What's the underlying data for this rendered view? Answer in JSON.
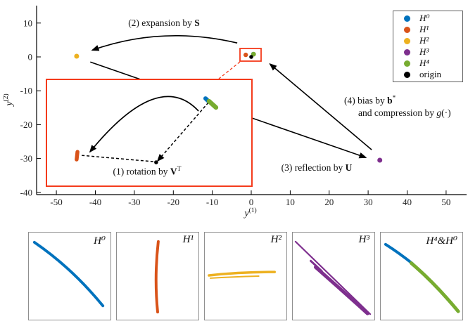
{
  "colors": {
    "H0": "#0072BD",
    "H1": "#D95319",
    "H2": "#EDB120",
    "H3": "#7E2F8E",
    "H4": "#77AC30",
    "origin": "#000000",
    "accent_red": "#f43b1c"
  },
  "axes": {
    "xlabel_base": "y",
    "xlabel_sup": "(1)",
    "ylabel_base": "y",
    "ylabel_sup": "(2)"
  },
  "legend": {
    "items": [
      {
        "key": "H0",
        "label": "H⁰"
      },
      {
        "key": "H1",
        "label": "H¹"
      },
      {
        "key": "H2",
        "label": "H²"
      },
      {
        "key": "H3",
        "label": "H³"
      },
      {
        "key": "H4",
        "label": "H⁴"
      },
      {
        "key": "origin",
        "label": "origin"
      }
    ]
  },
  "annotations": {
    "step1": {
      "prefix": "(1) rotation by ",
      "symbol": "V",
      "sup": "T"
    },
    "step2": {
      "prefix": "(2) expansion by ",
      "symbol": "S"
    },
    "step3": {
      "prefix": "(3) reflection by ",
      "symbol": "U"
    },
    "step4a": {
      "prefix": "(4) bias by ",
      "symbol": "b",
      "sup": "*"
    },
    "step4b": {
      "prefix": "and compression by ",
      "symbol": "g",
      "suffix": "(·)"
    }
  },
  "chart_data": {
    "type": "scatter",
    "title": "",
    "xlabel": "y⁽¹⁾",
    "ylabel": "y⁽²⁾",
    "xlim": [
      -55,
      55
    ],
    "ylim": [
      -40.7,
      15.1
    ],
    "x_ticks": [
      -50,
      -40,
      -30,
      -20,
      -10,
      0,
      10,
      20,
      30,
      40,
      50
    ],
    "y_ticks": [
      10,
      0,
      -10,
      -20,
      -30,
      -40
    ],
    "grid": false,
    "legend_position": "upper-right",
    "series": [
      {
        "name": "H0",
        "color": "#0072BD",
        "points": [
          [
            0.5,
            0.85
          ]
        ],
        "r": 3.0,
        "note": "overlaps H4 at main-axes scale"
      },
      {
        "name": "H1",
        "color": "#D95319",
        "points": [
          [
            -1.4,
            0.6
          ]
        ],
        "r": 3.2
      },
      {
        "name": "H2",
        "color": "#EDB120",
        "points": [
          [
            -44.8,
            0.2
          ]
        ],
        "r": 3.5
      },
      {
        "name": "H4",
        "color": "#77AC30",
        "points": [
          [
            0.6,
            0.8
          ]
        ],
        "r": 3.4
      },
      {
        "name": "H3",
        "color": "#7E2F8E",
        "points": [
          [
            33.0,
            -30.5
          ]
        ],
        "r": 3.5
      },
      {
        "name": "origin",
        "color": "#000000",
        "points": [
          [
            0,
            0
          ]
        ],
        "r": 2.8
      }
    ],
    "zoom_rect": {
      "x": [
        -2.9,
        2.5
      ],
      "y": [
        -1.3,
        2.4
      ]
    },
    "arrows": [
      {
        "id": "expansion",
        "text": "(2) expansion by S",
        "from": [
          -3.6,
          4.1
        ],
        "ctrl": [
          -22.9,
          9.3
        ],
        "to": [
          -40.8,
          2.0
        ]
      },
      {
        "id": "reflection",
        "text": "(3) reflection by U",
        "from": [
          -41.3,
          -1.5
        ],
        "to": [
          29.4,
          -29.7
        ]
      },
      {
        "id": "bias-compression",
        "text": "(4) bias by b* and compression by g(·)",
        "from": [
          30.9,
          -27.4
        ],
        "to": [
          4.8,
          -2.1
        ]
      }
    ],
    "inset": {
      "text": "(1) rotation by Vᵀ",
      "clusters": [
        {
          "name": "H0",
          "color": "#0072BD",
          "seg": [
            [
              0.774,
              0.178
            ],
            [
              0.788,
              0.204
            ]
          ],
          "w": 6
        },
        {
          "name": "H4",
          "color": "#77AC30",
          "seg": [
            [
              0.791,
              0.204
            ],
            [
              0.825,
              0.263
            ]
          ],
          "w": 6.5
        },
        {
          "name": "H1",
          "color": "#D95319",
          "seg": [
            [
              0.151,
              0.678
            ],
            [
              0.147,
              0.75
            ]
          ],
          "w": 5.5
        }
      ],
      "origin_dot": {
        "pos": [
          0.534,
          0.776
        ],
        "r": 2.8
      },
      "dashed": [
        {
          "from": [
            0.788,
            0.217
          ],
          "to": [
            0.541,
            0.763
          ],
          "arrow": true
        },
        {
          "from": [
            0.52,
            0.77
          ],
          "to": [
            0.168,
            0.711
          ],
          "arrow": false
        }
      ],
      "arc": {
        "p0": [
          0.74,
          0.296
        ],
        "c": [
          0.545,
          -0.105
        ],
        "p1": [
          0.212,
          0.678
        ]
      }
    },
    "panels": [
      {
        "label": "H⁰",
        "curves": [
          {
            "color": "#0072BD",
            "w": 4,
            "q": [
              [
                0.068,
                0.111
              ],
              [
                0.525,
                0.405
              ],
              [
                0.907,
                0.841
              ]
            ]
          }
        ]
      },
      {
        "label": "H¹",
        "curves": [
          {
            "color": "#D95319",
            "w": 4,
            "q": [
              [
                0.508,
                0.103
              ],
              [
                0.458,
                0.516
              ],
              [
                0.5,
                0.913
              ]
            ]
          }
        ]
      },
      {
        "label": "H²",
        "curves": [
          {
            "color": "#EDB120",
            "w": 3.5,
            "q": [
              [
                0.051,
                0.492
              ],
              [
                0.424,
                0.452
              ],
              [
                0.856,
                0.452
              ]
            ]
          },
          {
            "color": "#EDB120",
            "w": 2,
            "q": [
              [
                0.068,
                0.524
              ],
              [
                0.339,
                0.508
              ],
              [
                0.661,
                0.5
              ]
            ]
          }
        ]
      },
      {
        "label": "H³",
        "curves": [
          {
            "color": "#7E2F8E",
            "w": 2.2,
            "q": [
              [
                0.034,
                0.103
              ],
              [
                0.492,
                0.52
              ],
              [
                0.949,
                0.937
              ]
            ]
          },
          {
            "color": "#7E2F8E",
            "w": 5,
            "q": [
              [
                0.28,
                0.397
              ],
              [
                0.6,
                0.66
              ],
              [
                0.915,
                0.929
              ]
            ]
          },
          {
            "color": "#7E2F8E",
            "w": 3,
            "q": [
              [
                0.22,
                0.325
              ],
              [
                0.29,
                0.385
              ],
              [
                0.356,
                0.444
              ]
            ]
          }
        ]
      },
      {
        "label": "H⁴&H⁰",
        "curves": [
          {
            "color": "#0072BD",
            "w": 4,
            "q": [
              [
                0.059,
                0.135
              ],
              [
                0.22,
                0.23
              ],
              [
                0.39,
                0.357
              ]
            ]
          },
          {
            "color": "#77AC30",
            "w": 5,
            "q": [
              [
                0.373,
                0.349
              ],
              [
                0.661,
                0.579
              ],
              [
                0.949,
                0.905
              ]
            ]
          }
        ]
      }
    ]
  }
}
